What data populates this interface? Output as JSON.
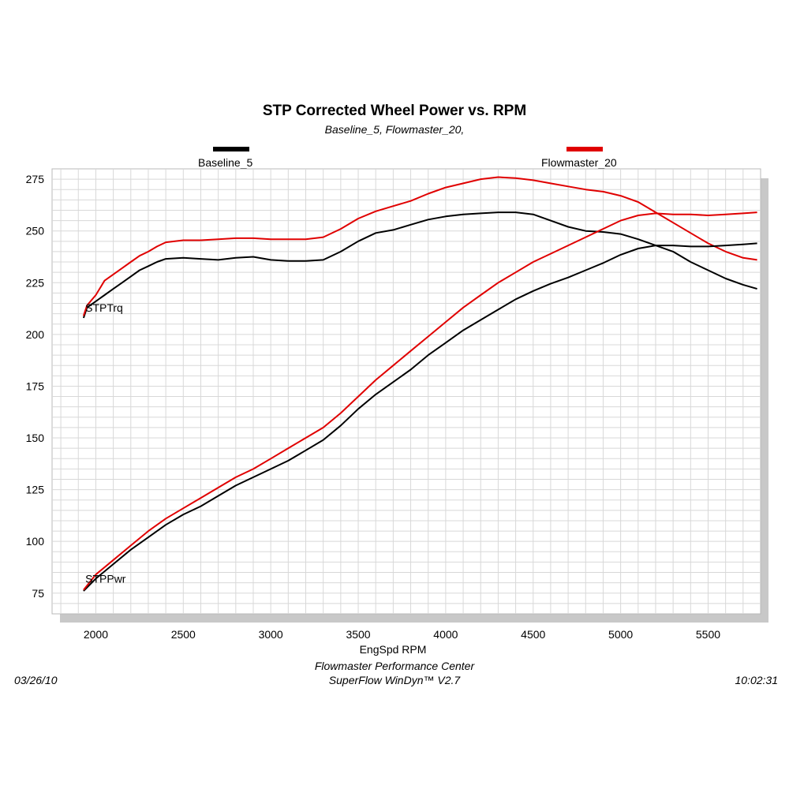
{
  "colors": {
    "baseline": "#000000",
    "flowmaster": "#e00000",
    "grid": "#d8d8d8",
    "shadow": "#c8c8c8"
  },
  "header": {
    "title": "STP Corrected Wheel Power vs. RPM",
    "subtitle": "Baseline_5, Flowmaster_20,"
  },
  "footer": {
    "line1": "Flowmaster Performance Center",
    "line2": "SuperFlow WinDyn™ V2.7",
    "date": "03/26/10",
    "time": "10:02:31"
  },
  "chart_data": {
    "type": "line",
    "title": "STP Corrected Wheel Power vs. RPM",
    "subtitle": "Baseline_5, Flowmaster_20,",
    "xlabel": "EngSpd  RPM",
    "ylabel": "",
    "xlim": [
      1750,
      5800
    ],
    "ylim": [
      65,
      280
    ],
    "xticks": [
      2000,
      2500,
      3000,
      3500,
      4000,
      4500,
      5000,
      5500
    ],
    "yticks": [
      75,
      100,
      125,
      150,
      175,
      200,
      225,
      250,
      275
    ],
    "grid": true,
    "legend_placement": "top",
    "curve_labels": [
      {
        "text": "STPTrq",
        "x": 1940,
        "y": 211
      },
      {
        "text": "STPPwr",
        "x": 1940,
        "y": 80
      }
    ],
    "series": [
      {
        "name": "Baseline_5",
        "color": "#000000",
        "group": "torque",
        "x": [
          1930,
          1950,
          2000,
          2050,
          2100,
          2150,
          2200,
          2250,
          2300,
          2350,
          2400,
          2500,
          2600,
          2700,
          2800,
          2900,
          3000,
          3100,
          3200,
          3300,
          3400,
          3500,
          3600,
          3700,
          3800,
          3900,
          4000,
          4100,
          4200,
          4300,
          4400,
          4500,
          4600,
          4700,
          4800,
          4900,
          5000,
          5100,
          5200,
          5300,
          5400,
          5500,
          5600,
          5700,
          5780
        ],
        "y": [
          208,
          213,
          216,
          219,
          222,
          225,
          228,
          231,
          233,
          235,
          236.5,
          237,
          236.5,
          236,
          237,
          237.5,
          236,
          235.5,
          235.5,
          236,
          240,
          245,
          249,
          250.5,
          253,
          255.5,
          257,
          258,
          258.5,
          259,
          259,
          258,
          255,
          252,
          250,
          249.5,
          248.5,
          246,
          243,
          240,
          235,
          231,
          227,
          224,
          222
        ]
      },
      {
        "name": "Flowmaster_20",
        "color": "#e00000",
        "group": "torque",
        "x": [
          1930,
          1950,
          2000,
          2050,
          2100,
          2150,
          2200,
          2250,
          2300,
          2350,
          2400,
          2500,
          2600,
          2700,
          2800,
          2900,
          3000,
          3100,
          3200,
          3300,
          3400,
          3500,
          3600,
          3700,
          3800,
          3900,
          4000,
          4100,
          4200,
          4300,
          4400,
          4500,
          4600,
          4700,
          4800,
          4900,
          5000,
          5100,
          5200,
          5300,
          5400,
          5500,
          5600,
          5700,
          5780
        ],
        "y": [
          209,
          214,
          219,
          226,
          229,
          232,
          235,
          238,
          240,
          242.5,
          244.5,
          245.5,
          245.5,
          246,
          246.5,
          246.5,
          246,
          246,
          246,
          247,
          251,
          256,
          259.5,
          262,
          264.5,
          268,
          271,
          273,
          275,
          276,
          275.5,
          274.5,
          273,
          271.5,
          270,
          269,
          267,
          264,
          259,
          254,
          249,
          244,
          240,
          237,
          236
        ]
      },
      {
        "name": "Baseline_5",
        "color": "#000000",
        "group": "power",
        "x": [
          1930,
          2000,
          2100,
          2200,
          2300,
          2400,
          2500,
          2600,
          2700,
          2800,
          2900,
          3000,
          3100,
          3200,
          3300,
          3400,
          3500,
          3600,
          3700,
          3800,
          3900,
          4000,
          4100,
          4200,
          4300,
          4400,
          4500,
          4600,
          4700,
          4800,
          4900,
          5000,
          5100,
          5200,
          5300,
          5400,
          5500,
          5600,
          5700,
          5780
        ],
        "y": [
          76,
          82,
          89,
          96,
          102,
          108,
          113,
          117,
          122,
          127,
          131,
          135,
          139,
          144,
          149,
          156,
          164,
          171,
          177,
          183,
          190,
          196,
          202,
          207,
          212,
          217,
          221,
          224.5,
          227.5,
          231,
          234.5,
          238.5,
          241.5,
          243,
          243,
          242.5,
          242.5,
          243,
          243.5,
          244
        ]
      },
      {
        "name": "Flowmaster_20",
        "color": "#e00000",
        "group": "power",
        "x": [
          1930,
          2000,
          2100,
          2200,
          2300,
          2400,
          2500,
          2600,
          2700,
          2800,
          2900,
          3000,
          3100,
          3200,
          3300,
          3400,
          3500,
          3600,
          3700,
          3800,
          3900,
          4000,
          4100,
          4200,
          4300,
          4400,
          4500,
          4600,
          4700,
          4800,
          4900,
          5000,
          5100,
          5200,
          5300,
          5400,
          5500,
          5600,
          5700,
          5780
        ],
        "y": [
          76.5,
          84,
          91,
          98,
          105,
          111,
          116,
          121,
          126,
          131,
          135,
          140,
          145,
          150,
          155,
          162,
          170,
          178,
          185,
          192,
          199,
          206,
          213,
          219,
          225,
          230,
          235,
          239,
          243,
          247,
          251,
          255,
          257.5,
          258.5,
          258,
          258,
          257.5,
          258,
          258.5,
          259
        ]
      }
    ],
    "legend": [
      {
        "name": "Baseline_5",
        "color": "#000000"
      },
      {
        "name": "Flowmaster_20",
        "color": "#e00000"
      }
    ]
  }
}
